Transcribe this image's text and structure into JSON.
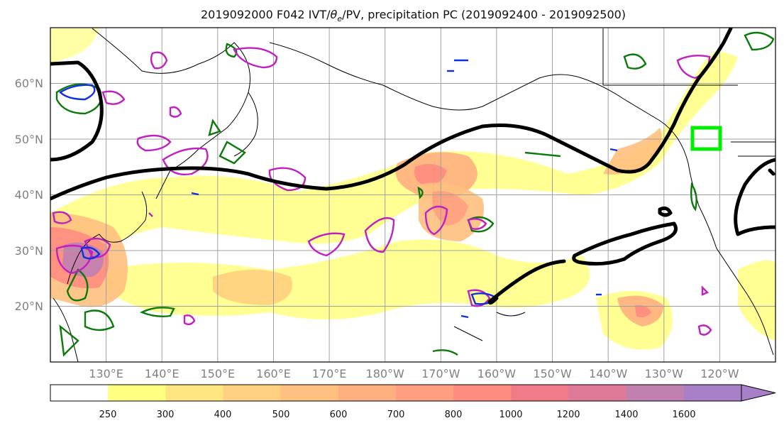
{
  "title": "2019092000 F042 IVT/θe/PV, precipitation PC (2019092400 - 2019092500)",
  "map": {
    "projection": "plate-carree",
    "lon_range_east": [
      120,
      250
    ],
    "lat_range": [
      10,
      70
    ],
    "lat_ticks": [
      {
        "lat": 60,
        "label": "60°N"
      },
      {
        "lat": 50,
        "label": "50°N"
      },
      {
        "lat": 40,
        "label": "40°N"
      },
      {
        "lat": 30,
        "label": "30°N"
      },
      {
        "lat": 20,
        "label": "20°N"
      }
    ],
    "lon_ticks": [
      {
        "lon": 130,
        "label": "130°E"
      },
      {
        "lon": 140,
        "label": "140°E"
      },
      {
        "lon": 150,
        "label": "150°E"
      },
      {
        "lon": 160,
        "label": "160°E"
      },
      {
        "lon": 170,
        "label": "170°E"
      },
      {
        "lon": 180,
        "label": "180°W"
      },
      {
        "lon": 190,
        "label": "170°W"
      },
      {
        "lon": 200,
        "label": "160°W"
      },
      {
        "lon": 210,
        "label": "150°W"
      },
      {
        "lon": 220,
        "label": "140°W"
      },
      {
        "lon": 230,
        "label": "130°W"
      },
      {
        "lon": 240,
        "label": "120°W"
      }
    ],
    "gridlines": true,
    "highlight_box": {
      "color": "#00ee00",
      "lon_range": [
        236,
        241
      ],
      "lat_range": [
        48.5,
        52
      ]
    },
    "pv_contour_color": "#000000",
    "theta_e_contour_color": "#0a7a0a",
    "contour_colors_other": [
      "#c020c0",
      "#1030e0"
    ]
  },
  "colorbar": {
    "levels": [
      "250",
      "300",
      "400",
      "500",
      "600",
      "700",
      "800",
      "1000",
      "1200",
      "1400",
      "1600"
    ],
    "colors": [
      "#ffffff",
      "#ffff80",
      "#ffe680",
      "#ffd080",
      "#ffc080",
      "#ffb080",
      "#ff9e80",
      "#ff8c80",
      "#f07a88",
      "#dd7a98",
      "#c080b0",
      "#a880c8"
    ],
    "extend": "max"
  }
}
